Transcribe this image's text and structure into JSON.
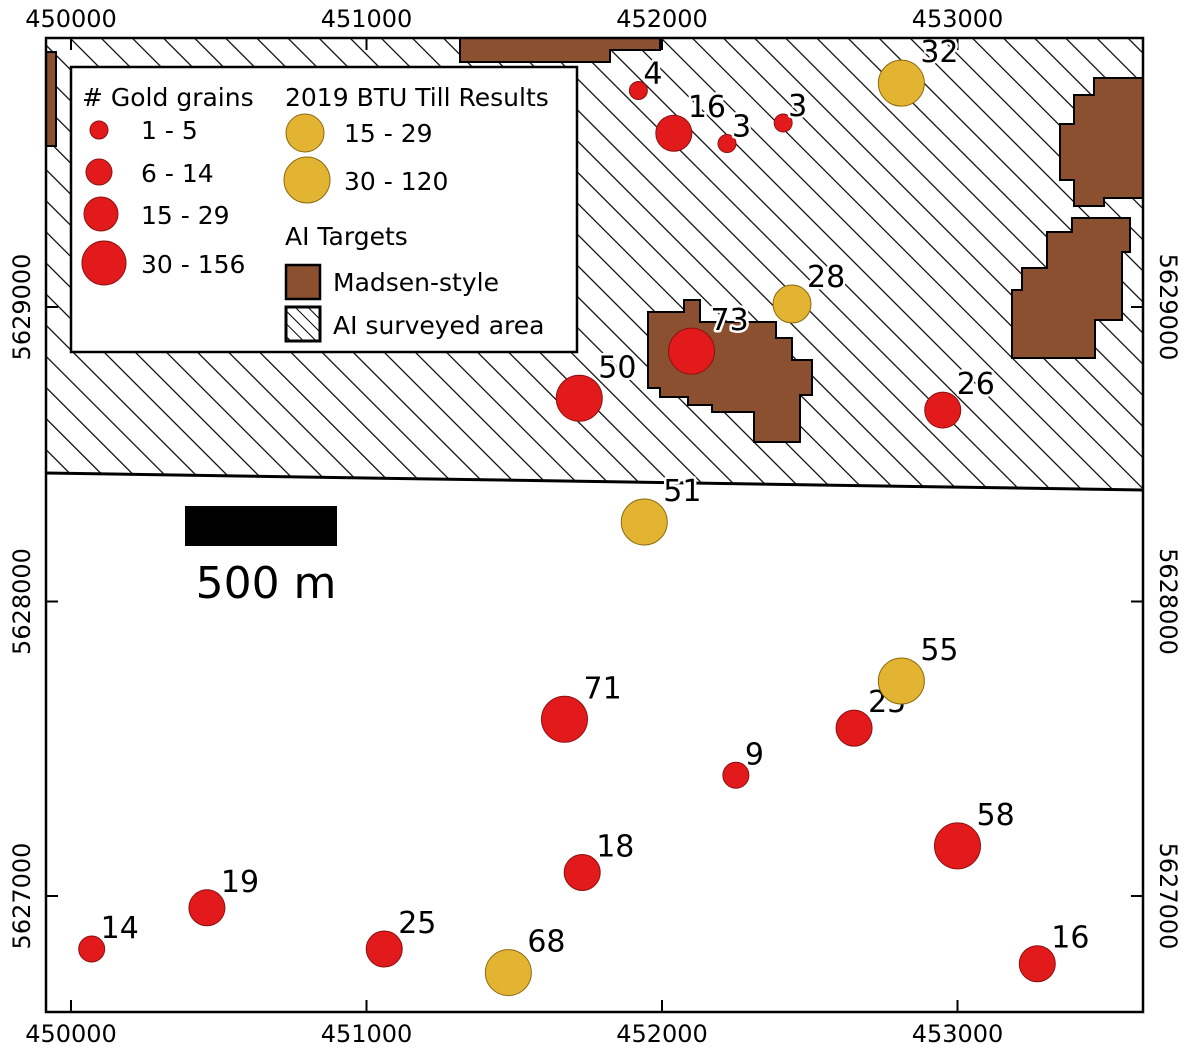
{
  "colors": {
    "gold_grains": "#e31a1c",
    "till_results": "#e3b432",
    "madsen_target": "#8b5030",
    "frame": "#000000"
  },
  "axes": {
    "x_ticks": [
      "450000",
      "451000",
      "452000",
      "453000"
    ],
    "y_ticks": [
      "5627000",
      "5628000",
      "5629000"
    ]
  },
  "scale_bar": {
    "label": "500 m"
  },
  "legend": {
    "gold_grains_title": "# Gold grains",
    "gold_grains_classes": [
      "1 - 5",
      "6 - 14",
      "15 - 29",
      "30 - 156"
    ],
    "till_title": "2019 BTU Till Results",
    "till_classes": [
      "15 - 29",
      "30 - 120"
    ],
    "ai_title": "AI Targets",
    "madsen_label": "Madsen-style",
    "surveyed_label": "AI surveyed area"
  },
  "gold_grain_samples": [
    {
      "e": 451920,
      "n": 5629735,
      "count": "4"
    },
    {
      "e": 452040,
      "n": 5629590,
      "count": "16"
    },
    {
      "e": 452220,
      "n": 5629555,
      "count": "3"
    },
    {
      "e": 452410,
      "n": 5629625,
      "count": "3"
    },
    {
      "e": 452100,
      "n": 5628850,
      "count": "73"
    },
    {
      "e": 451720,
      "n": 5628690,
      "count": "50"
    },
    {
      "e": 452950,
      "n": 5628650,
      "count": "26"
    },
    {
      "e": 451670,
      "n": 5627600,
      "count": "71"
    },
    {
      "e": 452650,
      "n": 5627570,
      "count": "25"
    },
    {
      "e": 452250,
      "n": 5627410,
      "count": "9"
    },
    {
      "e": 453000,
      "n": 5627170,
      "count": "58"
    },
    {
      "e": 451730,
      "n": 5627080,
      "count": "18"
    },
    {
      "e": 450460,
      "n": 5626960,
      "count": "19"
    },
    {
      "e": 450070,
      "n": 5626820,
      "count": "14"
    },
    {
      "e": 451060,
      "n": 5626820,
      "count": "25"
    },
    {
      "e": 453270,
      "n": 5626770,
      "count": "16"
    }
  ],
  "till_samples": [
    {
      "e": 452810,
      "n": 5629760,
      "count": "32"
    },
    {
      "e": 452440,
      "n": 5629010,
      "count": "28"
    },
    {
      "e": 451940,
      "n": 5628270,
      "count": "51"
    },
    {
      "e": 452810,
      "n": 5627730,
      "count": "55"
    },
    {
      "e": 451480,
      "n": 5626740,
      "count": "68"
    }
  ]
}
